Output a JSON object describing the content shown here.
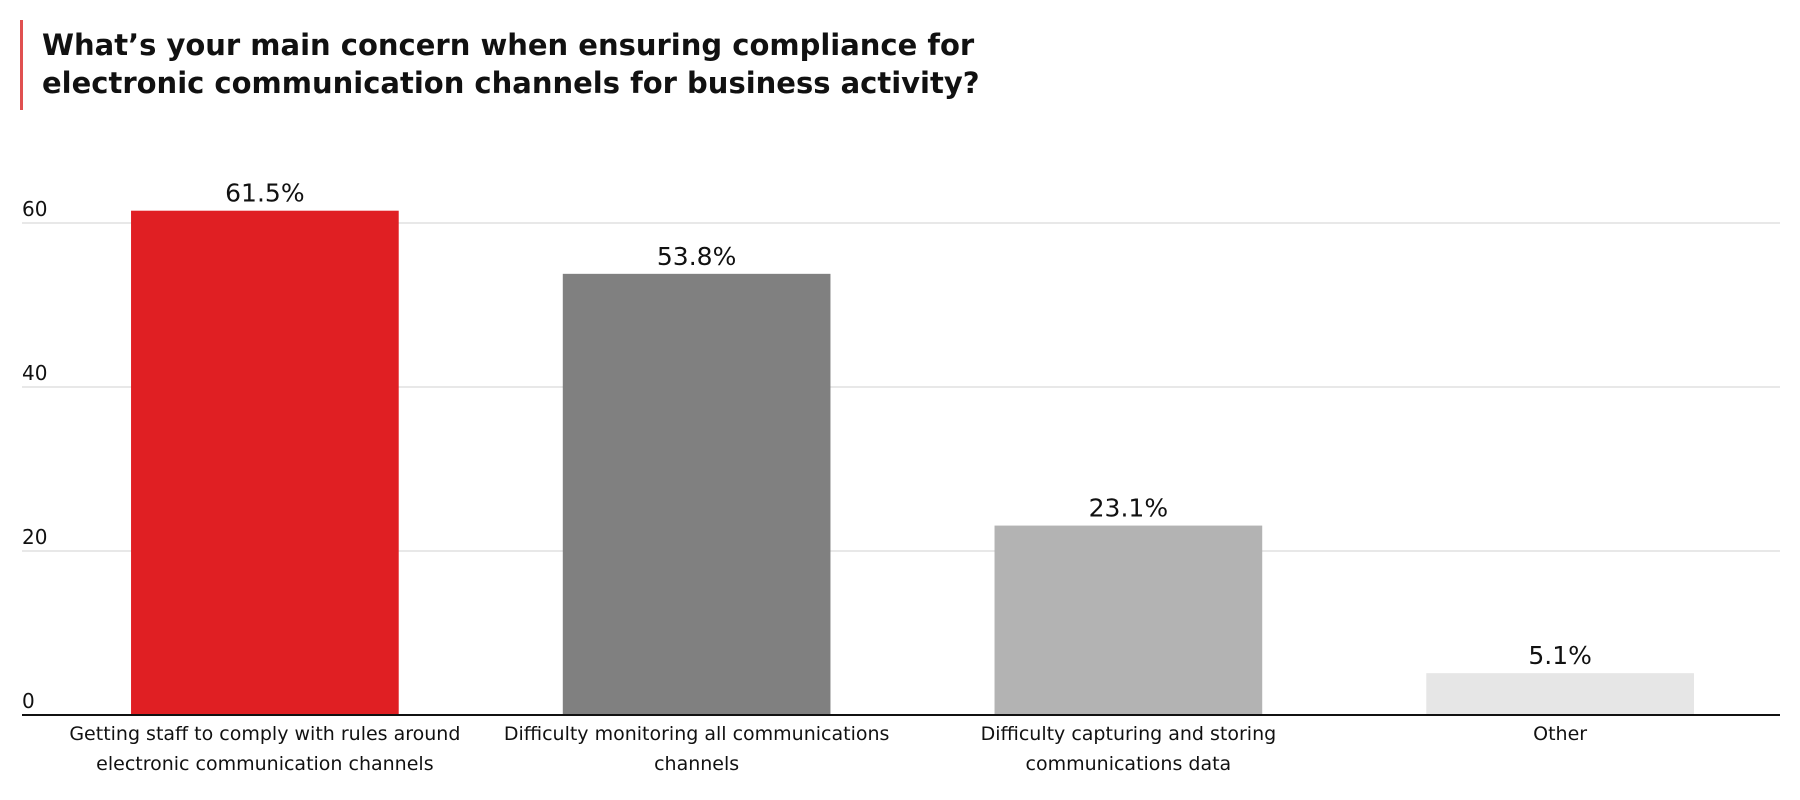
{
  "chart_data": {
    "type": "bar",
    "title": "What’s your main concern when ensuring compliance for electronic communication channels for business activity?",
    "categories": [
      "Getting staff to comply with rules around electronic communication channels",
      "Difficulty monitoring all communications channels",
      "Difficulty capturing and storing communications data",
      "Other"
    ],
    "values": [
      61.5,
      53.8,
      23.1,
      5.1
    ],
    "value_labels": [
      "61.5%",
      "53.8%",
      "23.1%",
      "5.1%"
    ],
    "colors": [
      "#e01f23",
      "#808080",
      "#b3b3b3",
      "#e6e6e6"
    ],
    "ylim": [
      0,
      65
    ],
    "yticks": [
      0,
      20,
      40,
      60
    ],
    "grid": true
  }
}
